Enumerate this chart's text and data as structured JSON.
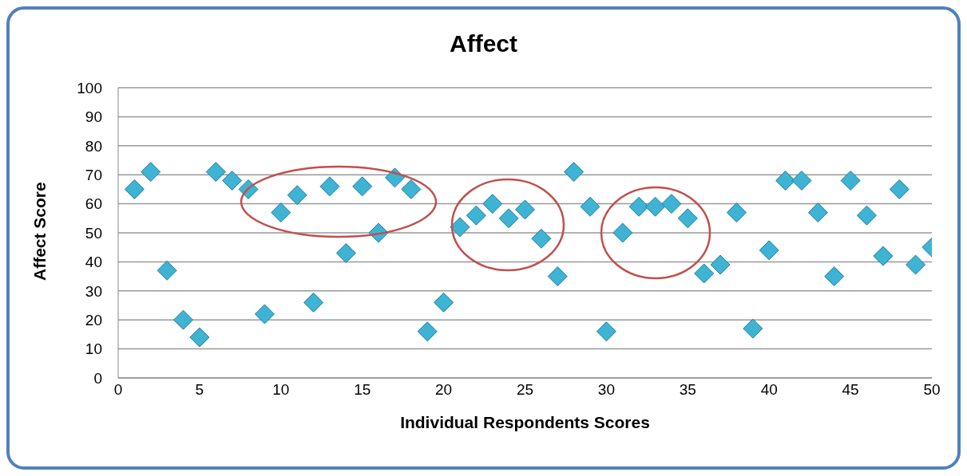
{
  "chart_data": {
    "type": "scatter",
    "title": "Affect",
    "xlabel": "Individual Respondents Scores",
    "ylabel": "Affect Score",
    "x": [
      1,
      2,
      3,
      4,
      5,
      6,
      7,
      8,
      9,
      10,
      11,
      12,
      13,
      14,
      15,
      16,
      17,
      18,
      19,
      20,
      21,
      22,
      23,
      24,
      25,
      26,
      27,
      28,
      29,
      30,
      31,
      32,
      33,
      34,
      35,
      36,
      37,
      38,
      39,
      40,
      41,
      42,
      43,
      44,
      45,
      46,
      47,
      48,
      49,
      50
    ],
    "series": [
      {
        "color": "#3fb3d3",
        "values": [
          65,
          71,
          37,
          20,
          14,
          71,
          68,
          65,
          22,
          57,
          63,
          26,
          66,
          43,
          66,
          50,
          69,
          65,
          16,
          26,
          52,
          56,
          60,
          55,
          58,
          48,
          35,
          71,
          59,
          16,
          50,
          59,
          59,
          60,
          55,
          36,
          39,
          57,
          17,
          44,
          68,
          68,
          57,
          35,
          68,
          56,
          42,
          65,
          39,
          45
        ]
      }
    ],
    "xlim": [
      0,
      50
    ],
    "xticks": [
      0,
      5,
      10,
      15,
      20,
      25,
      30,
      35,
      40,
      45,
      50
    ],
    "ylim": [
      0,
      100
    ],
    "yticks": [
      0,
      10,
      20,
      30,
      40,
      50,
      60,
      70,
      80,
      90,
      100
    ],
    "grid": "y",
    "marker": "diamond"
  }
}
